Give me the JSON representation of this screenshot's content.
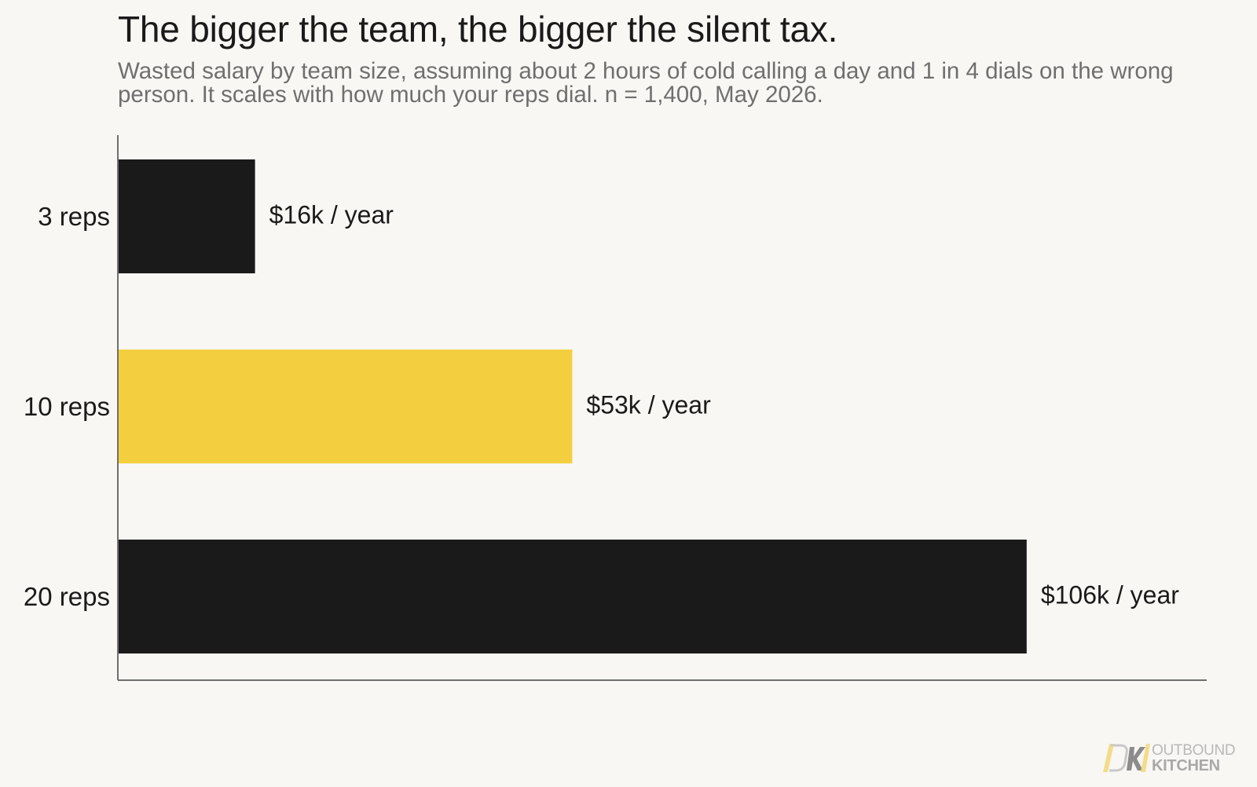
{
  "title": "The bigger the team, the bigger the silent tax.",
  "subtitle": "Wasted salary by team size, assuming about 2 hours of cold calling a day and 1 in 4 dials on the wrong person. It scales with how much your reps dial. n = 1,400, May 2026.",
  "logo": {
    "mark": "OK",
    "line1": "OUTBOUND",
    "line2": "KITCHEN"
  },
  "colors": {
    "background": "#f8f7f4",
    "bar_default": "#1a1a1a",
    "bar_highlight": "#f3cf3f",
    "axis": "#6f6f6f",
    "text": "#1a1a1a",
    "subtitle": "#6f6f6f",
    "logo_yellow": "#f3dc8a",
    "logo_grey": "#a8a8a8"
  },
  "chart_data": {
    "type": "bar",
    "orientation": "horizontal",
    "title": "The bigger the team, the bigger the silent tax.",
    "subtitle": "Wasted salary by team size, assuming about 2 hours of cold calling a day and 1 in 4 dials on the wrong person. It scales with how much your reps dial. n = 1,400, May 2026.",
    "xlabel": "",
    "ylabel": "",
    "categories": [
      "3 reps",
      "10 reps",
      "20 reps"
    ],
    "values": [
      16,
      53,
      106
    ],
    "unit": "$k / year",
    "data_labels": [
      "$16k / year",
      "$53k / year",
      "$106k / year"
    ],
    "highlight": [
      "10 reps"
    ],
    "xlim": [
      0,
      127
    ],
    "grid": false,
    "x_ticks_visible": false
  }
}
